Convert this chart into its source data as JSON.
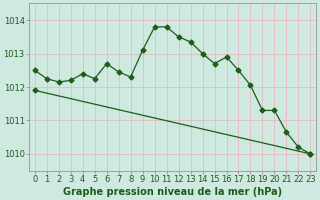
{
  "bg_color": "#cfe8e0",
  "grid_color": "#e8b0b8",
  "line_color": "#1a5e1a",
  "spine_color": "#888888",
  "ylim": [
    1009.5,
    1014.5
  ],
  "xlim": [
    -0.5,
    23.5
  ],
  "yticks": [
    1010,
    1011,
    1012,
    1013,
    1014
  ],
  "xtick_labels": [
    "0",
    "1",
    "2",
    "3",
    "4",
    "5",
    "6",
    "7",
    "8",
    "9",
    "10",
    "11",
    "12",
    "13",
    "14",
    "15",
    "16",
    "17",
    "18",
    "19",
    "20",
    "21",
    "22",
    "23"
  ],
  "xlabel": "Graphe pression niveau de la mer (hPa)",
  "series1_x": [
    0,
    1,
    2,
    3,
    4,
    5,
    6,
    7,
    8,
    9,
    10,
    11,
    12,
    13,
    14,
    15,
    16,
    17,
    18,
    19,
    20,
    21,
    22,
    23
  ],
  "series1_y": [
    1012.5,
    1012.25,
    1012.15,
    1012.2,
    1012.4,
    1012.25,
    1012.7,
    1012.45,
    1012.3,
    1013.1,
    1013.8,
    1013.8,
    1013.5,
    1013.35,
    1013.0,
    1012.7,
    1012.9,
    1012.5,
    1012.05,
    1011.3,
    1011.3,
    1010.65,
    1010.2,
    1010.0
  ],
  "series2_x": [
    0,
    23
  ],
  "series2_y": [
    1011.9,
    1010.0
  ],
  "tick_fontsize": 6.0,
  "xlabel_fontsize": 7.0,
  "markersize": 2.5,
  "linewidth": 0.9
}
